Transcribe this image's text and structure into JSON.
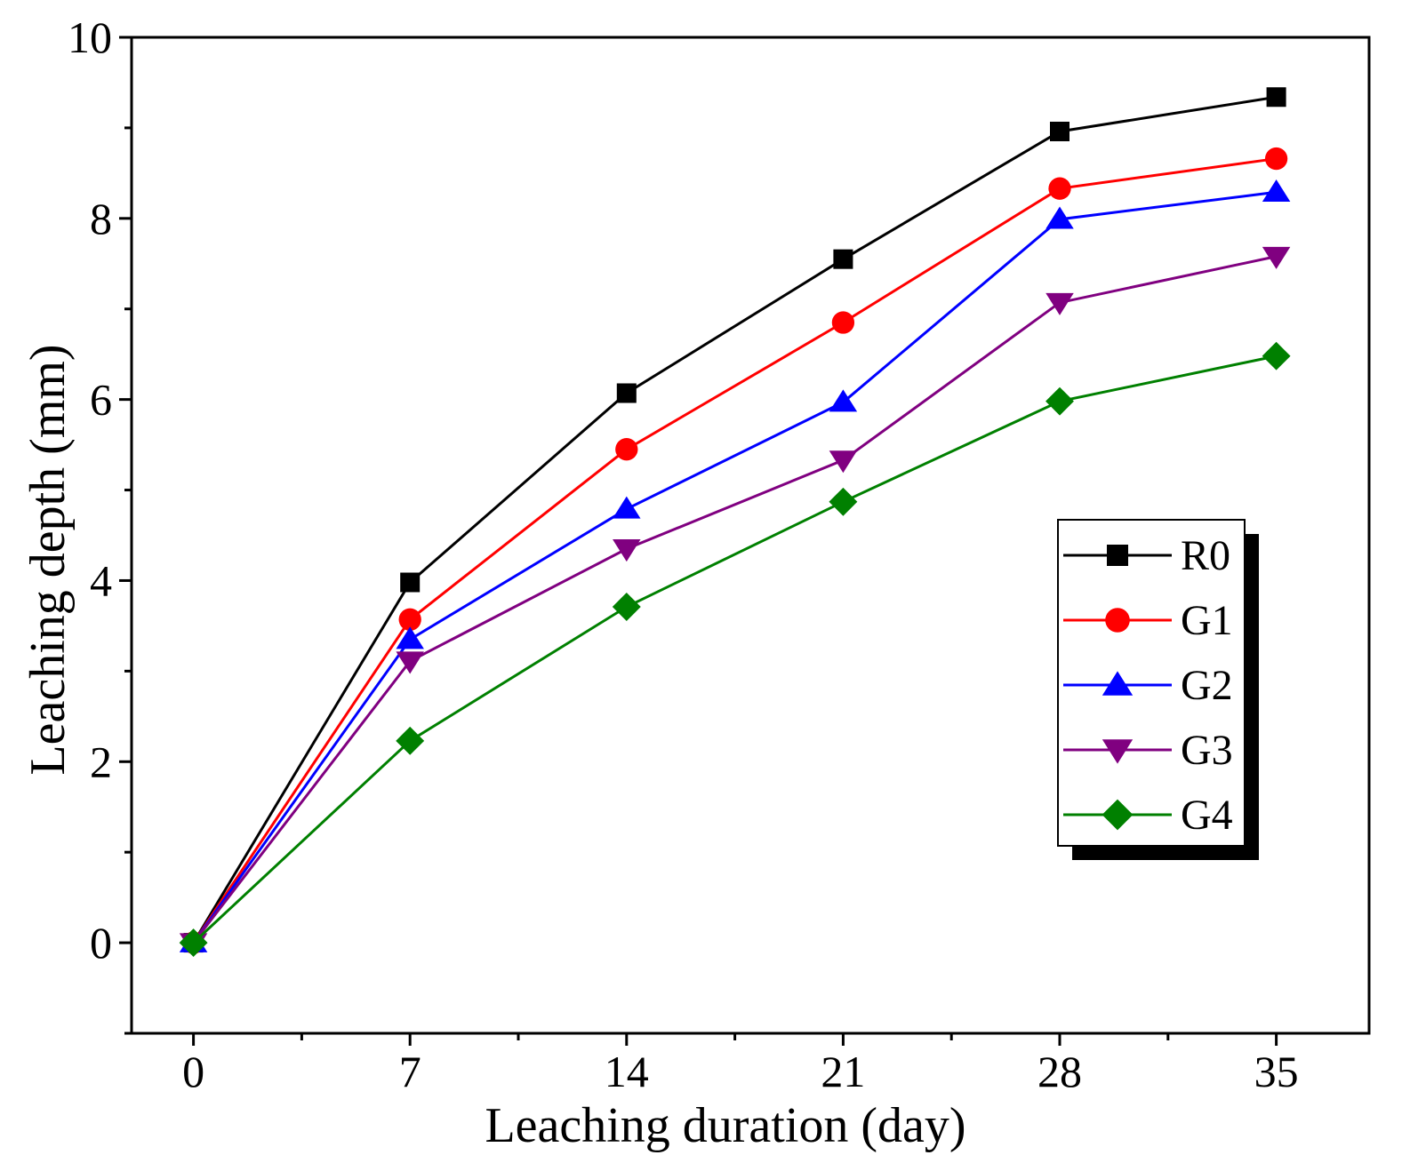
{
  "chart_data": {
    "type": "line",
    "title": "",
    "xlabel": "Leaching duration (day)",
    "ylabel": "Leaching depth (mm)",
    "x": [
      0,
      7,
      14,
      21,
      28,
      35
    ],
    "xticks": [
      "0",
      "7",
      "14",
      "21",
      "28",
      "35"
    ],
    "yticks": [
      "0",
      "2",
      "4",
      "6",
      "8",
      "10"
    ],
    "xlim": [
      -2,
      38
    ],
    "ylim": [
      -1,
      10
    ],
    "grid": false,
    "legend_position": "right-middle",
    "series": [
      {
        "name": "R0",
        "color": "#000000",
        "marker": "square",
        "values": [
          0,
          3.98,
          6.07,
          7.55,
          8.96,
          9.34
        ]
      },
      {
        "name": "G1",
        "color": "#ff0000",
        "marker": "circle",
        "values": [
          0,
          3.57,
          5.45,
          6.85,
          8.33,
          8.66
        ]
      },
      {
        "name": "G2",
        "color": "#0000ff",
        "marker": "triangle-up",
        "values": [
          0,
          3.35,
          4.79,
          5.97,
          7.99,
          8.29
        ]
      },
      {
        "name": "G3",
        "color": "#800080",
        "marker": "triangle-down",
        "values": [
          0,
          3.11,
          4.35,
          5.33,
          7.07,
          7.58
        ]
      },
      {
        "name": "G4",
        "color": "#008000",
        "marker": "diamond",
        "values": [
          0,
          2.23,
          3.71,
          4.87,
          5.98,
          6.48
        ]
      }
    ]
  }
}
